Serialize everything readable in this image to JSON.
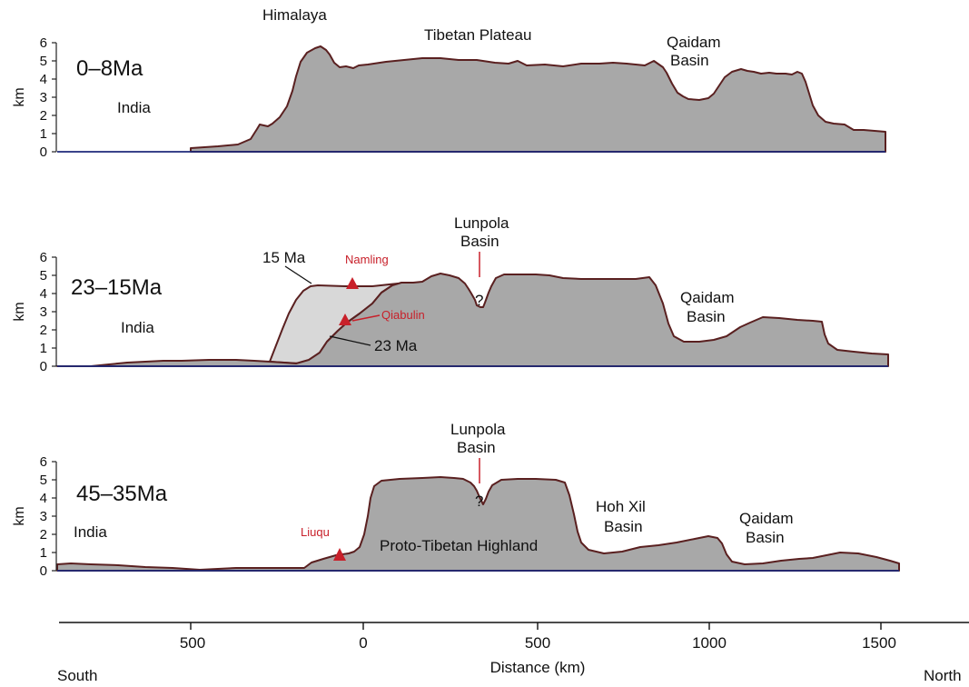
{
  "colors": {
    "terrain_fill": "#a8a8a8",
    "terrain_stroke": "#5a2020",
    "earlier_fill": "#d8d8d8",
    "baseline": "#1e2a7a",
    "marker_red": "#c8202a",
    "text": "#111111"
  },
  "y_axis": {
    "label": "km",
    "ticks": [
      "0",
      "1",
      "2",
      "3",
      "4",
      "5",
      "6"
    ]
  },
  "panels": [
    {
      "period": "0–8Ma",
      "labels": {
        "india": "India",
        "himalaya": "Himalaya",
        "tibetan_plateau": "Tibetan Plateau",
        "qaidam_line1": "Qaidam",
        "qaidam_line2": "Basin"
      }
    },
    {
      "period": "23–15Ma",
      "labels": {
        "india": "India",
        "lunpola_line1": "Lunpola",
        "lunpola_line2": "Basin",
        "question": "?",
        "qaidam_line1": "Qaidam",
        "qaidam_line2": "Basin",
        "ma15": "15 Ma",
        "ma23": "23 Ma",
        "namling": "Namling",
        "qiabulin": "Qiabulin"
      }
    },
    {
      "period": "45–35Ma",
      "labels": {
        "india": "India",
        "lunpola_line1": "Lunpola",
        "lunpola_line2": "Basin",
        "question": "?",
        "hohxil_line1": "Hoh Xil",
        "hohxil_line2": "Basin",
        "qaidam_line1": "Qaidam",
        "qaidam_line2": "Basin",
        "highland": "Proto-Tibetan Highland",
        "liuqu": "Liuqu"
      }
    }
  ],
  "x_axis": {
    "ticks": [
      "500",
      "0",
      "500",
      "1000",
      "1500"
    ],
    "title": "Distance (km)",
    "south": "South",
    "north": "North"
  }
}
